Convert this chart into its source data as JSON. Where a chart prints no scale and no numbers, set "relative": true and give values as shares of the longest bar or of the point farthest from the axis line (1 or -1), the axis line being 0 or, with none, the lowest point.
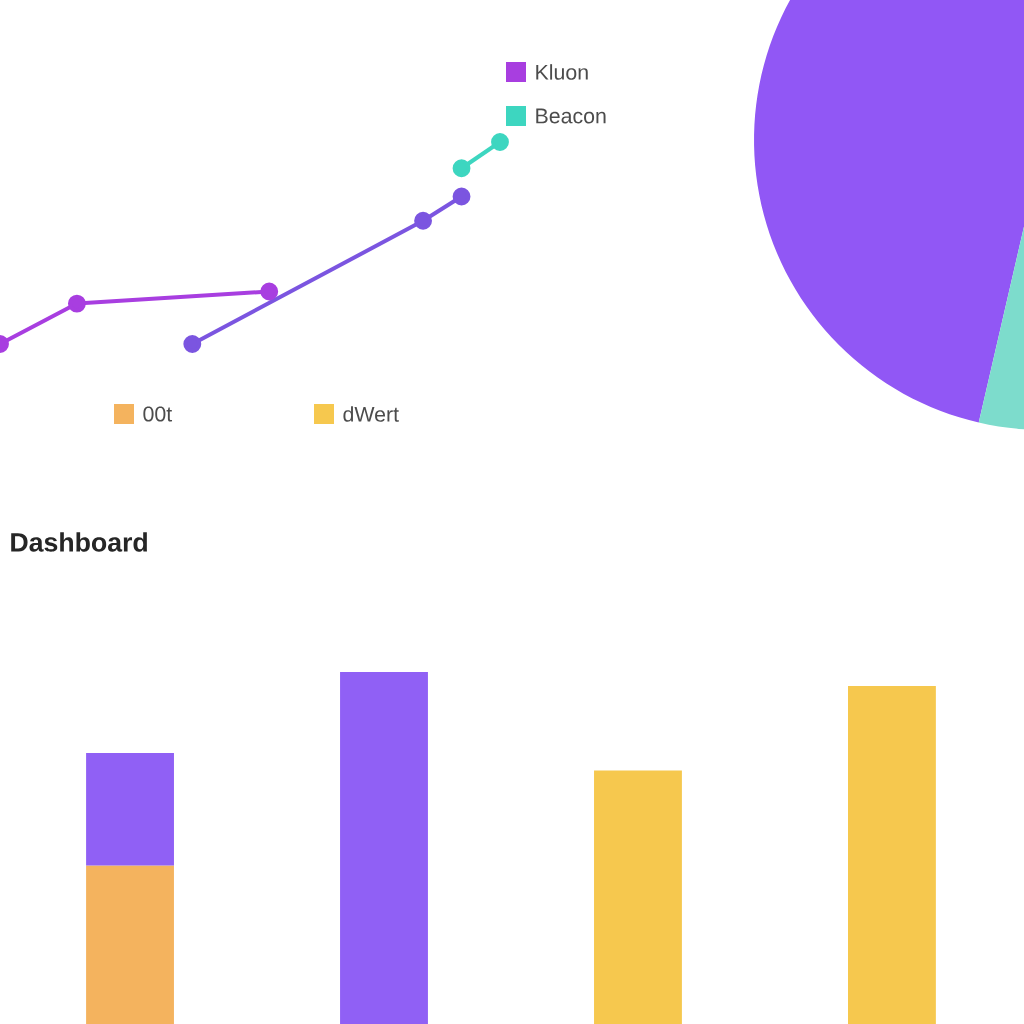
{
  "chart_data": [
    {
      "type": "line",
      "relative": true,
      "marker": "circle",
      "legend": "top right",
      "categories": [
        null,
        null,
        null,
        null,
        null,
        null,
        null,
        null,
        null,
        null,
        null,
        null,
        null,
        null
      ],
      "series": [
        {
          "name": "Kluon",
          "color": "#a83ee0",
          "values": [
            0,
            null,
            0.2,
            null,
            null,
            null,
            null,
            0.26,
            null,
            null,
            null,
            null,
            null,
            null
          ]
        },
        {
          "color": "#7b55e0",
          "values": [
            null,
            null,
            null,
            null,
            null,
            0,
            null,
            null,
            null,
            null,
            null,
            0.61,
            0.73,
            null
          ]
        },
        {
          "name": "Beacon",
          "color": "#3dd6c0",
          "values": [
            null,
            null,
            null,
            null,
            null,
            null,
            null,
            null,
            null,
            null,
            null,
            null,
            0.87,
            1
          ]
        }
      ]
    },
    {
      "type": "pie",
      "categories": [
        null,
        null
      ],
      "values": [
        70,
        30
      ],
      "colors": [
        "#9157f5",
        "#7ddccc"
      ]
    },
    {
      "type": "bar",
      "title": "Dashboard",
      "relative": true,
      "stacked": true,
      "legend": "top",
      "categories": [
        null,
        null,
        null,
        null
      ],
      "series": [
        {
          "name": "00t",
          "color": "#f4b35e",
          "values": [
            0.45,
            null,
            null,
            null
          ]
        },
        {
          "name": "dWert",
          "color": "#f6c84e",
          "values": [
            null,
            null,
            0.72,
            0.96
          ]
        },
        {
          "color": "#9060f5",
          "values": [
            0.32,
            1,
            null,
            null
          ]
        }
      ]
    }
  ]
}
